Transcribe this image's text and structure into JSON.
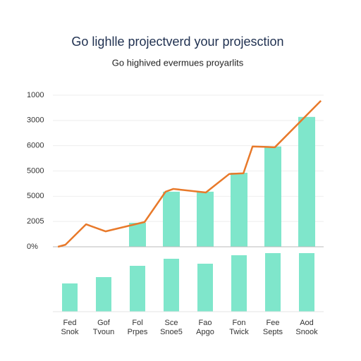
{
  "chart_data": [
    {
      "type": "combo",
      "title": "Go lighlle projectverd your projesction",
      "subtitle": "Go highived evermues proyarlits",
      "xlim": [
        -0.5,
        7.5
      ],
      "ylim": [
        0,
        6
      ],
      "yticks": [
        {
          "value": 0,
          "label": "0%"
        },
        {
          "value": 1,
          "label": "2005"
        },
        {
          "value": 2,
          "label": "5000"
        },
        {
          "value": 3,
          "label": "5000"
        },
        {
          "value": 4,
          "label": "6000"
        },
        {
          "value": 5,
          "label": "3000"
        },
        {
          "value": 6,
          "label": "1000"
        }
      ],
      "grid": true,
      "bars": {
        "color": "#7fe6cb",
        "values": [
          null,
          null,
          0.95,
          2.18,
          2.18,
          2.93,
          3.97,
          5.14
        ]
      },
      "line": {
        "color": "#e8792a",
        "x": [
          -0.35,
          -0.13,
          0.48,
          1.06,
          2.21,
          2.83,
          3.06,
          4.02,
          4.71,
          5.13,
          5.4,
          6.06,
          7.42
        ],
        "values": [
          0,
          0.08,
          0.89,
          0.61,
          0.98,
          2.18,
          2.29,
          2.15,
          2.88,
          2.91,
          3.97,
          3.94,
          5.78
        ]
      }
    },
    {
      "type": "bar",
      "categories": [
        "Fed Snok",
        "Gof Tvoun",
        "Fol Prpes",
        "Sce Snoe5",
        "Fao Apgo",
        "Fon Twick",
        "Fee Septs",
        "Aod Snook"
      ],
      "values": [
        40,
        49,
        65,
        75,
        68,
        80,
        83,
        83
      ],
      "color": "#7fe6cb",
      "ylim": [
        0,
        100
      ]
    }
  ]
}
